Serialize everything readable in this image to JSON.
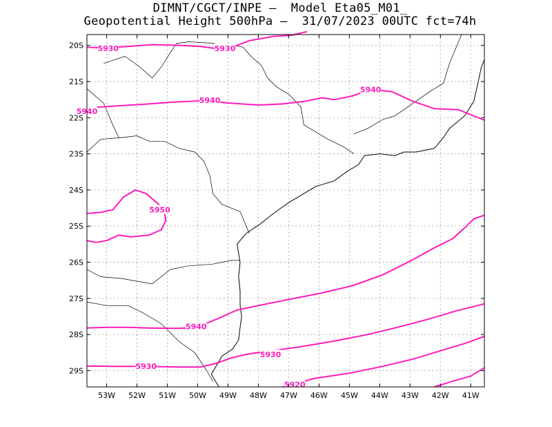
{
  "header": {
    "line1": "DIMNT/CGCT/INPE –  Model Eta05_M01_",
    "line2": "Geopotential Height 500hPa –  31/07/2023 00UTC fct=74h"
  },
  "map": {
    "lon_range": [
      -53.65,
      -40.55
    ],
    "lat_range": [
      -29.45,
      -19.7
    ],
    "lon_ticks": [
      {
        "value": -53,
        "label": "53W"
      },
      {
        "value": -52,
        "label": "52W"
      },
      {
        "value": -51,
        "label": "51W"
      },
      {
        "value": -50,
        "label": "50W"
      },
      {
        "value": -49,
        "label": "49W"
      },
      {
        "value": -48,
        "label": "48W"
      },
      {
        "value": -47,
        "label": "47W"
      },
      {
        "value": -46,
        "label": "46W"
      },
      {
        "value": -45,
        "label": "45W"
      },
      {
        "value": -44,
        "label": "44W"
      },
      {
        "value": -43,
        "label": "43W"
      },
      {
        "value": -42,
        "label": "42W"
      },
      {
        "value": -41,
        "label": "41W"
      }
    ],
    "lat_ticks": [
      {
        "value": -20,
        "label": "20S"
      },
      {
        "value": -21,
        "label": "21S"
      },
      {
        "value": -22,
        "label": "22S"
      },
      {
        "value": -23,
        "label": "23S"
      },
      {
        "value": -24,
        "label": "24S"
      },
      {
        "value": -25,
        "label": "25S"
      },
      {
        "value": -26,
        "label": "26S"
      },
      {
        "value": -27,
        "label": "27S"
      },
      {
        "value": -28,
        "label": "28S"
      },
      {
        "value": -29,
        "label": "29S"
      }
    ],
    "grid": true,
    "contour_color": "#ff1aba",
    "coast_color": "#000000",
    "contours": [
      {
        "points": [
          [
            -53.65,
            -20.05
          ],
          [
            -53.1,
            -20.07
          ],
          [
            -52.3,
            -20.03
          ],
          [
            -51.5,
            -19.98
          ],
          [
            -50.6,
            -20.0
          ],
          [
            -49.9,
            -20.03
          ],
          [
            -49.3,
            -20.1
          ],
          [
            -48.8,
            -20.03
          ],
          [
            -48.3,
            -19.87
          ],
          [
            -47.5,
            -19.75
          ],
          [
            -46.9,
            -19.72
          ],
          [
            -46.4,
            -19.62
          ]
        ]
      },
      {
        "points": [
          [
            -53.65,
            -21.73
          ],
          [
            -52.8,
            -21.68
          ],
          [
            -51.8,
            -21.63
          ],
          [
            -50.8,
            -21.57
          ],
          [
            -49.8,
            -21.53
          ],
          [
            -48.9,
            -21.6
          ],
          [
            -48.0,
            -21.65
          ],
          [
            -47.2,
            -21.62
          ],
          [
            -46.5,
            -21.55
          ],
          [
            -45.9,
            -21.45
          ],
          [
            -45.5,
            -21.5
          ],
          [
            -44.9,
            -21.4
          ],
          [
            -44.3,
            -21.22
          ],
          [
            -43.6,
            -21.28
          ],
          [
            -42.9,
            -21.55
          ],
          [
            -42.2,
            -21.75
          ],
          [
            -41.4,
            -21.78
          ],
          [
            -40.55,
            -22.07
          ]
        ]
      },
      {
        "points": [
          [
            -53.65,
            -24.65
          ],
          [
            -53.2,
            -24.62
          ],
          [
            -52.8,
            -24.55
          ],
          [
            -52.45,
            -24.2
          ],
          [
            -52.05,
            -24.0
          ],
          [
            -51.7,
            -24.1
          ],
          [
            -51.35,
            -24.35
          ],
          [
            -51.1,
            -24.55
          ],
          [
            -51.05,
            -24.85
          ],
          [
            -51.2,
            -25.1
          ],
          [
            -51.6,
            -25.25
          ],
          [
            -52.2,
            -25.3
          ],
          [
            -52.6,
            -25.25
          ],
          [
            -53.0,
            -25.4
          ],
          [
            -53.35,
            -25.45
          ],
          [
            -53.65,
            -25.4
          ]
        ]
      },
      {
        "points": [
          [
            -53.65,
            -27.82
          ],
          [
            -53.0,
            -27.8
          ],
          [
            -52.3,
            -27.8
          ],
          [
            -51.6,
            -27.82
          ],
          [
            -50.8,
            -27.83
          ],
          [
            -50.3,
            -27.82
          ],
          [
            -49.8,
            -27.72
          ],
          [
            -49.3,
            -27.55
          ],
          [
            -48.7,
            -27.32
          ],
          [
            -48.0,
            -27.2
          ],
          [
            -47.0,
            -27.03
          ],
          [
            -45.9,
            -26.85
          ],
          [
            -44.9,
            -26.65
          ],
          [
            -43.9,
            -26.35
          ],
          [
            -43.0,
            -25.97
          ],
          [
            -42.2,
            -25.6
          ],
          [
            -41.6,
            -25.35
          ],
          [
            -41.2,
            -25.05
          ],
          [
            -40.9,
            -24.8
          ],
          [
            -40.55,
            -24.7
          ]
        ]
      },
      {
        "points": [
          [
            -53.65,
            -28.87
          ],
          [
            -52.8,
            -28.88
          ],
          [
            -51.7,
            -28.88
          ],
          [
            -50.6,
            -28.9
          ],
          [
            -49.9,
            -28.9
          ],
          [
            -49.4,
            -28.8
          ],
          [
            -48.9,
            -28.65
          ],
          [
            -48.4,
            -28.55
          ],
          [
            -47.6,
            -28.45
          ],
          [
            -46.7,
            -28.35
          ],
          [
            -45.5,
            -28.18
          ],
          [
            -44.4,
            -28.0
          ],
          [
            -43.5,
            -27.82
          ],
          [
            -42.5,
            -27.6
          ],
          [
            -41.5,
            -27.35
          ],
          [
            -40.55,
            -27.15
          ]
        ]
      },
      {
        "points": [
          [
            -47.2,
            -29.45
          ],
          [
            -46.8,
            -29.38
          ],
          [
            -46.2,
            -29.22
          ],
          [
            -45.0,
            -29.07
          ],
          [
            -43.9,
            -28.88
          ],
          [
            -42.9,
            -28.68
          ],
          [
            -42.0,
            -28.45
          ],
          [
            -41.2,
            -28.25
          ],
          [
            -40.55,
            -28.05
          ]
        ]
      },
      {
        "points": [
          [
            -42.2,
            -29.45
          ],
          [
            -41.7,
            -29.32
          ],
          [
            -41.0,
            -29.15
          ],
          [
            -40.55,
            -28.92
          ]
        ]
      }
    ],
    "contour_labels": [
      {
        "text": "5930",
        "lon": -52.95,
        "lat": -20.08
      },
      {
        "text": "5930",
        "lon": -49.1,
        "lat": -20.08
      },
      {
        "text": "5940",
        "lon": -49.6,
        "lat": -21.52
      },
      {
        "text": "5940",
        "lon": -44.3,
        "lat": -21.22
      },
      {
        "text": "5940",
        "lon": -53.65,
        "lat": -21.82
      },
      {
        "text": "5950",
        "lon": -51.25,
        "lat": -24.55
      },
      {
        "text": "5940",
        "lon": -50.05,
        "lat": -27.78
      },
      {
        "text": "5930",
        "lon": -51.7,
        "lat": -28.88
      },
      {
        "text": "5930",
        "lon": -47.6,
        "lat": -28.55
      },
      {
        "text": "5920",
        "lon": -46.8,
        "lat": -29.38
      }
    ],
    "coastline": [
      [
        -49.3,
        -29.45
      ],
      [
        -49.55,
        -29.1
      ],
      [
        -49.2,
        -28.6
      ],
      [
        -48.85,
        -28.4
      ],
      [
        -48.65,
        -28.15
      ],
      [
        -48.6,
        -27.8
      ],
      [
        -48.55,
        -27.5
      ],
      [
        -48.6,
        -27.2
      ],
      [
        -48.6,
        -26.8
      ],
      [
        -48.65,
        -26.4
      ],
      [
        -48.6,
        -26.0
      ],
      [
        -48.7,
        -25.5
      ],
      [
        -48.4,
        -25.2
      ],
      [
        -47.95,
        -24.95
      ],
      [
        -47.5,
        -24.65
      ],
      [
        -47.0,
        -24.35
      ],
      [
        -46.5,
        -24.1
      ],
      [
        -46.1,
        -23.9
      ],
      [
        -45.5,
        -23.75
      ],
      [
        -45.1,
        -23.5
      ],
      [
        -44.7,
        -23.3
      ],
      [
        -44.5,
        -23.05
      ],
      [
        -44.0,
        -23.0
      ],
      [
        -43.5,
        -23.05
      ],
      [
        -43.2,
        -22.95
      ],
      [
        -42.8,
        -22.95
      ],
      [
        -42.2,
        -22.85
      ],
      [
        -41.9,
        -22.55
      ],
      [
        -41.7,
        -22.3
      ],
      [
        -41.2,
        -21.95
      ],
      [
        -40.9,
        -21.55
      ],
      [
        -40.75,
        -21.0
      ],
      [
        -40.65,
        -20.6
      ],
      [
        -40.55,
        -20.4
      ]
    ],
    "borders": [
      [
        [
          -53.65,
          -22.95
        ],
        [
          -53.2,
          -22.6
        ],
        [
          -52.5,
          -22.55
        ],
        [
          -52.0,
          -22.5
        ],
        [
          -51.6,
          -22.65
        ],
        [
          -51.1,
          -22.65
        ],
        [
          -50.6,
          -22.85
        ],
        [
          -50.1,
          -22.95
        ],
        [
          -49.8,
          -23.2
        ],
        [
          -49.6,
          -23.6
        ],
        [
          -49.5,
          -24.1
        ],
        [
          -49.2,
          -24.4
        ],
        [
          -48.6,
          -24.6
        ],
        [
          -48.3,
          -25.2
        ]
      ],
      [
        [
          -53.65,
          -26.2
        ],
        [
          -53.2,
          -26.4
        ],
        [
          -52.5,
          -26.45
        ],
        [
          -51.5,
          -26.6
        ],
        [
          -50.9,
          -26.2
        ],
        [
          -50.3,
          -26.1
        ],
        [
          -49.5,
          -26.05
        ],
        [
          -48.9,
          -25.95
        ],
        [
          -48.6,
          -25.95
        ]
      ],
      [
        [
          -53.65,
          -27.1
        ],
        [
          -53.0,
          -27.2
        ],
        [
          -52.3,
          -27.2
        ],
        [
          -51.8,
          -27.4
        ],
        [
          -51.2,
          -27.7
        ],
        [
          -50.6,
          -28.2
        ],
        [
          -50.1,
          -28.5
        ],
        [
          -49.7,
          -29.0
        ],
        [
          -49.5,
          -29.3
        ]
      ],
      [
        [
          -51.5,
          -20.9
        ],
        [
          -51.2,
          -20.6
        ],
        [
          -50.9,
          -20.2
        ],
        [
          -50.7,
          -19.95
        ],
        [
          -50.3,
          -19.9
        ],
        [
          -49.7,
          -19.93
        ],
        [
          -49.2,
          -19.97
        ],
        [
          -48.8,
          -20.0
        ],
        [
          -48.5,
          -20.05
        ],
        [
          -48.25,
          -20.3
        ],
        [
          -47.9,
          -20.55
        ],
        [
          -47.7,
          -20.9
        ],
        [
          -47.4,
          -21.15
        ],
        [
          -47.0,
          -21.35
        ],
        [
          -46.6,
          -21.7
        ],
        [
          -46.5,
          -22.2
        ],
        [
          -46.1,
          -22.4
        ],
        [
          -45.7,
          -22.6
        ],
        [
          -45.2,
          -22.8
        ],
        [
          -44.85,
          -23.0
        ]
      ],
      [
        [
          -44.85,
          -22.45
        ],
        [
          -44.4,
          -22.3
        ],
        [
          -43.9,
          -22.05
        ],
        [
          -43.5,
          -21.95
        ],
        [
          -42.9,
          -21.6
        ],
        [
          -42.3,
          -21.25
        ],
        [
          -41.9,
          -21.05
        ],
        [
          -41.7,
          -20.5
        ],
        [
          -41.5,
          -20.1
        ],
        [
          -41.3,
          -19.7
        ]
      ],
      [
        [
          -53.65,
          -21.2
        ],
        [
          -53.1,
          -21.6
        ],
        [
          -52.8,
          -22.2
        ],
        [
          -52.6,
          -22.55
        ]
      ],
      [
        [
          -53.1,
          -20.5
        ],
        [
          -52.4,
          -20.3
        ],
        [
          -51.9,
          -20.6
        ],
        [
          -51.5,
          -20.9
        ]
      ]
    ]
  }
}
